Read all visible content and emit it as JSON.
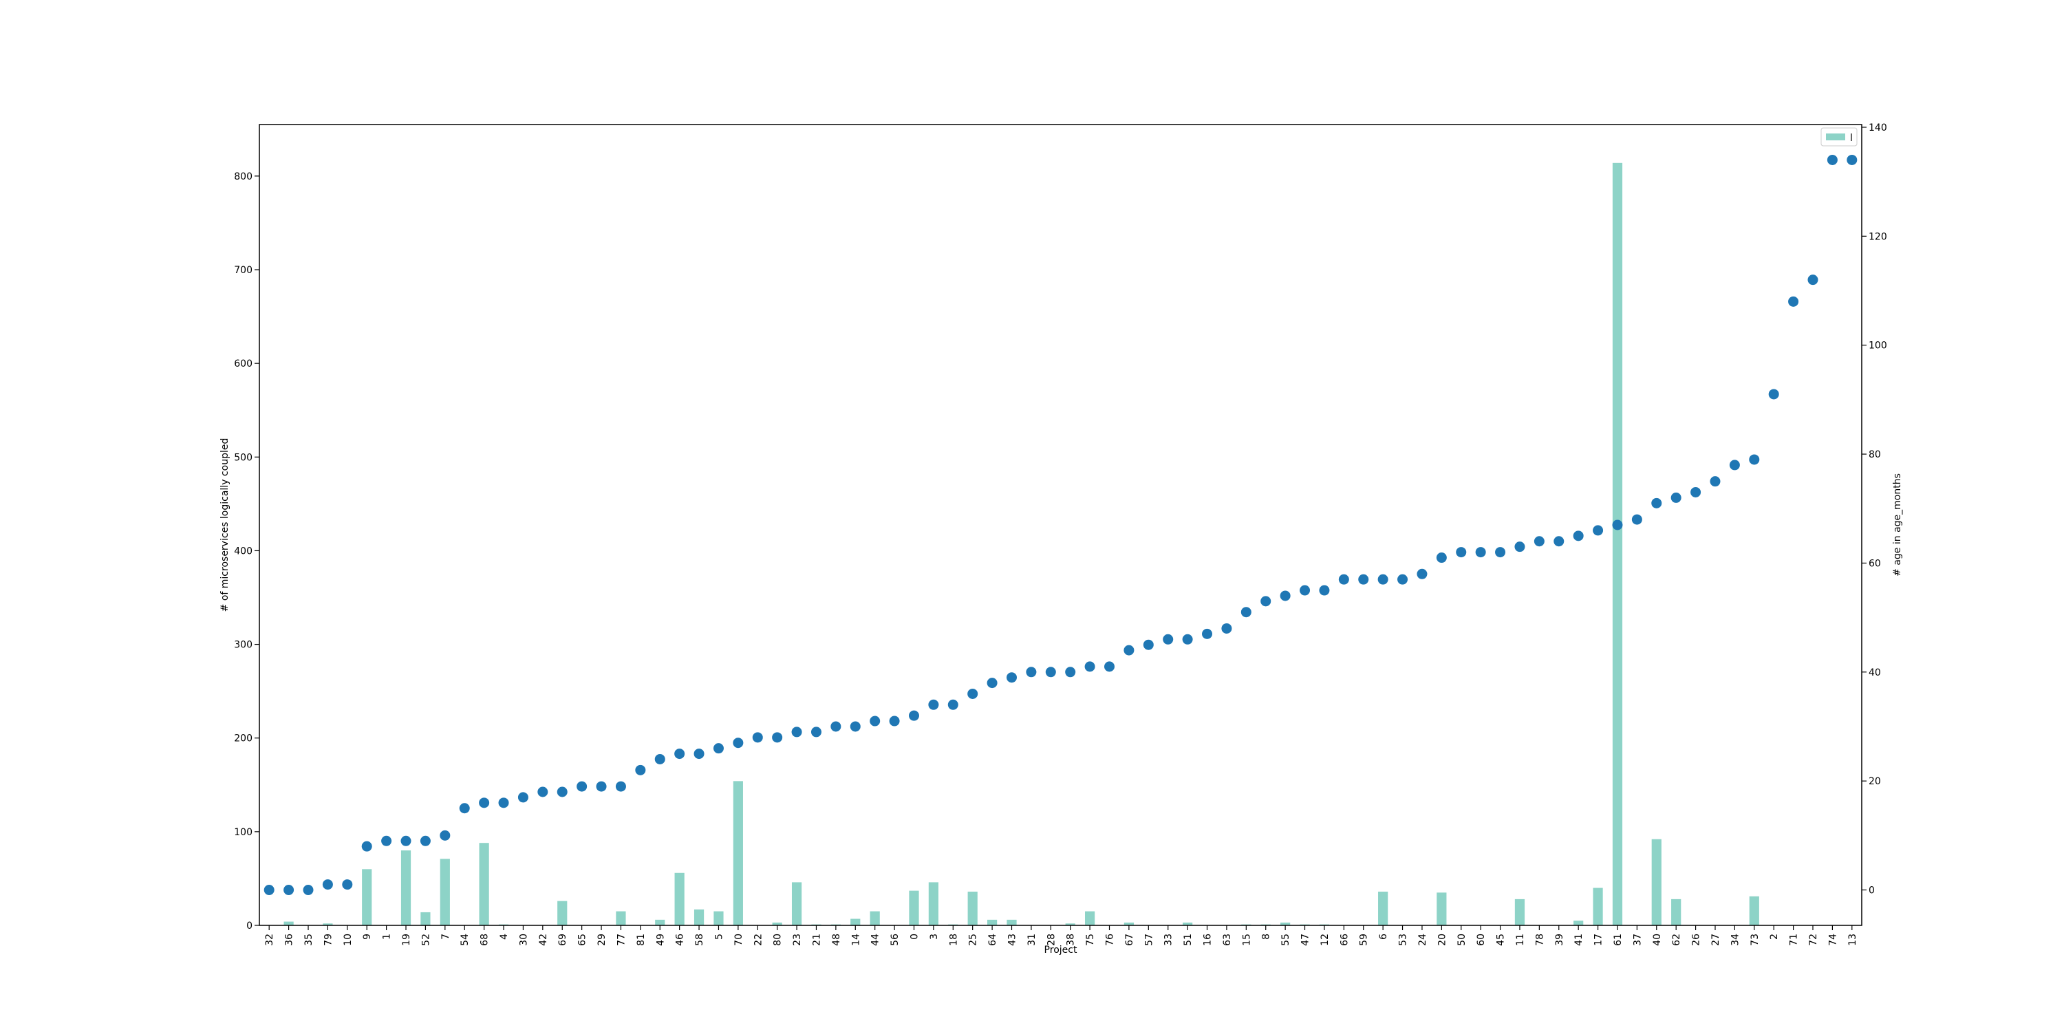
{
  "chart_data": {
    "type": "bar+scatter",
    "title": "",
    "xlabel": "Project",
    "ylabel_left": "# of microservices logically coupled",
    "ylabel_right": "# age in age_months",
    "ylim_left": [
      0,
      855
    ],
    "ylim_right": [
      -6.5,
      140.5
    ],
    "yticks_left": [
      0,
      100,
      200,
      300,
      400,
      500,
      600,
      700,
      800
    ],
    "yticks_right": [
      0,
      20,
      40,
      60,
      80,
      100,
      120,
      140
    ],
    "legend": {
      "label": "l",
      "placement": "top-right"
    },
    "colors": {
      "bars": "#8dd3c7",
      "dots": "#1f77b4",
      "axis": "#000000"
    },
    "categories": [
      "32",
      "36",
      "35",
      "79",
      "10",
      "9",
      "1",
      "19",
      "52",
      "7",
      "54",
      "68",
      "4",
      "30",
      "42",
      "69",
      "65",
      "29",
      "77",
      "81",
      "49",
      "46",
      "58",
      "5",
      "70",
      "22",
      "80",
      "23",
      "21",
      "48",
      "14",
      "44",
      "56",
      "0",
      "3",
      "18",
      "25",
      "64",
      "43",
      "31",
      "28",
      "38",
      "75",
      "76",
      "67",
      "57",
      "33",
      "51",
      "16",
      "63",
      "15",
      "8",
      "55",
      "47",
      "12",
      "66",
      "59",
      "6",
      "53",
      "24",
      "20",
      "50",
      "60",
      "45",
      "11",
      "78",
      "39",
      "41",
      "17",
      "61",
      "37",
      "40",
      "62",
      "26",
      "27",
      "34",
      "73",
      "2",
      "71",
      "72",
      "74",
      "13"
    ],
    "series": [
      {
        "name": "l",
        "kind": "bar",
        "axis": "left",
        "values": [
          0,
          4,
          0,
          2,
          0,
          60,
          0,
          80,
          14,
          71,
          0,
          88,
          1,
          0,
          0,
          26,
          0,
          0,
          15,
          0,
          6,
          56,
          17,
          15,
          154,
          0,
          3,
          46,
          1,
          1,
          7,
          15,
          0,
          37,
          46,
          1,
          36,
          6,
          6,
          0,
          0,
          2,
          15,
          0,
          3,
          0,
          0,
          3,
          0,
          0,
          1,
          1,
          3,
          1,
          1,
          0,
          0,
          36,
          0,
          0,
          35,
          0,
          0,
          0,
          28,
          0,
          0,
          5,
          40,
          814,
          0,
          92,
          28,
          0,
          0,
          0,
          31,
          0,
          0,
          0,
          0,
          0
        ]
      },
      {
        "name": "age_months",
        "kind": "scatter",
        "axis": "right",
        "values": [
          0,
          0,
          0,
          1,
          1,
          8,
          9,
          9,
          9,
          10,
          15,
          16,
          16,
          17,
          18,
          18,
          19,
          19,
          19,
          22,
          24,
          25,
          25,
          26,
          27,
          28,
          28,
          29,
          29,
          30,
          30,
          31,
          31,
          32,
          34,
          34,
          36,
          38,
          39,
          40,
          40,
          40,
          41,
          41,
          44,
          45,
          46,
          46,
          47,
          48,
          51,
          53,
          54,
          55,
          55,
          57,
          57,
          57,
          57,
          58,
          61,
          62,
          62,
          62,
          63,
          64,
          64,
          65,
          66,
          67,
          68,
          71,
          72,
          73,
          75,
          78,
          79,
          91,
          108,
          112,
          134,
          134
        ]
      }
    ]
  }
}
